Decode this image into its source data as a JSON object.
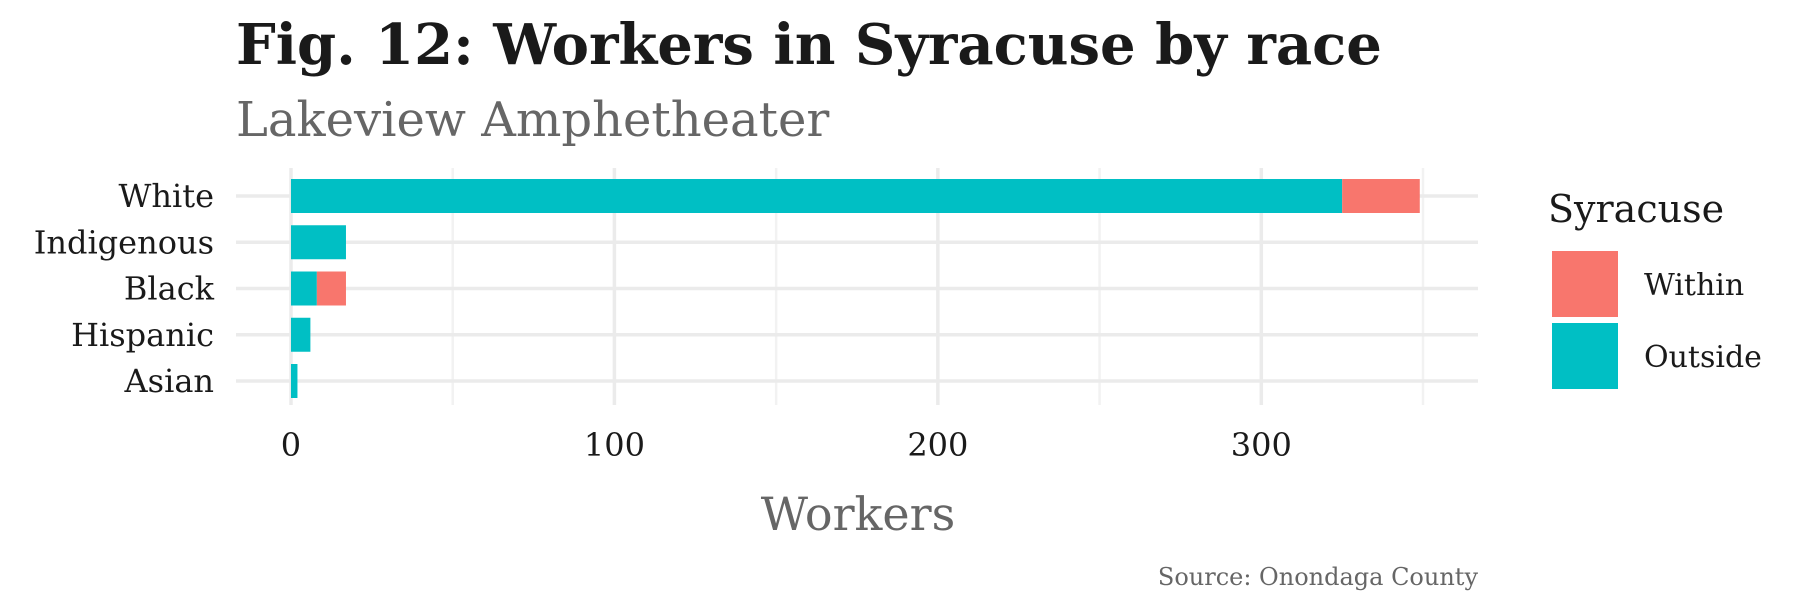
{
  "chart_data": {
    "type": "bar",
    "orientation": "horizontal",
    "stacked": true,
    "title": "Fig. 12: Workers in Syracuse by race",
    "subtitle": "Lakeview Amphetheater",
    "xlabel": "Workers",
    "ylabel": "",
    "categories": [
      "White",
      "Indigenous",
      "Black",
      "Hispanic",
      "Asian"
    ],
    "series": [
      {
        "name": "Outside",
        "color": "#00BFC4",
        "values": [
          325,
          17,
          8,
          6,
          2
        ]
      },
      {
        "name": "Within",
        "color": "#F8766D",
        "values": [
          24,
          0,
          9,
          0,
          0
        ]
      }
    ],
    "xlim": [
      -17,
      367
    ],
    "xticks": [
      0,
      100,
      200,
      300
    ],
    "xtick_labels": [
      "0",
      "100",
      "200",
      "300"
    ],
    "grid": true,
    "legend": {
      "title": "Syracuse",
      "position": "right",
      "entries": [
        {
          "label": "Within",
          "color": "#F8766D"
        },
        {
          "label": "Outside",
          "color": "#00BFC4"
        }
      ]
    },
    "caption": "Source: Onondaga County"
  }
}
